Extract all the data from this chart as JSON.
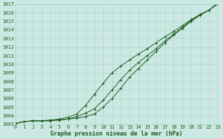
{
  "xlabel": "Graphe pression niveau de la mer (hPa)",
  "ylim": [
    1003,
    1017
  ],
  "xlim": [
    0,
    23
  ],
  "yticks": [
    1003,
    1004,
    1005,
    1006,
    1007,
    1008,
    1009,
    1010,
    1011,
    1012,
    1013,
    1014,
    1015,
    1016,
    1017
  ],
  "xticks": [
    0,
    1,
    2,
    3,
    4,
    5,
    6,
    7,
    8,
    9,
    10,
    11,
    12,
    13,
    14,
    15,
    16,
    17,
    18,
    19,
    20,
    21,
    22,
    23
  ],
  "background_color": "#cbe8e2",
  "grid_color": "#a8d5cc",
  "line_color": "#1a5c1a",
  "line1_y": [
    1003.1,
    1003.3,
    1003.4,
    1003.4,
    1003.4,
    1003.5,
    1003.6,
    1003.7,
    1003.9,
    1004.2,
    1005.0,
    1006.0,
    1007.2,
    1008.5,
    1009.5,
    1010.5,
    1011.5,
    1012.5,
    1013.4,
    1014.2,
    1015.0,
    1015.7,
    1016.3,
    1017.0
  ],
  "line2_y": [
    1003.1,
    1003.3,
    1003.4,
    1003.4,
    1003.4,
    1003.5,
    1003.6,
    1003.9,
    1004.3,
    1004.8,
    1005.8,
    1007.0,
    1008.2,
    1009.3,
    1010.2,
    1011.0,
    1011.8,
    1012.7,
    1013.5,
    1014.3,
    1015.1,
    1015.8,
    1016.3,
    1017.1
  ],
  "line3_y": [
    1003.1,
    1003.3,
    1003.4,
    1003.4,
    1003.5,
    1003.6,
    1003.8,
    1004.2,
    1005.2,
    1006.5,
    1007.8,
    1009.0,
    1009.8,
    1010.5,
    1011.2,
    1011.8,
    1012.5,
    1013.2,
    1013.8,
    1014.5,
    1015.2,
    1015.8,
    1016.3,
    1017.1
  ],
  "tick_fontsize": 5.0,
  "label_fontsize": 6.0,
  "marker": "+",
  "markersize": 2.8,
  "linewidth": 0.7
}
